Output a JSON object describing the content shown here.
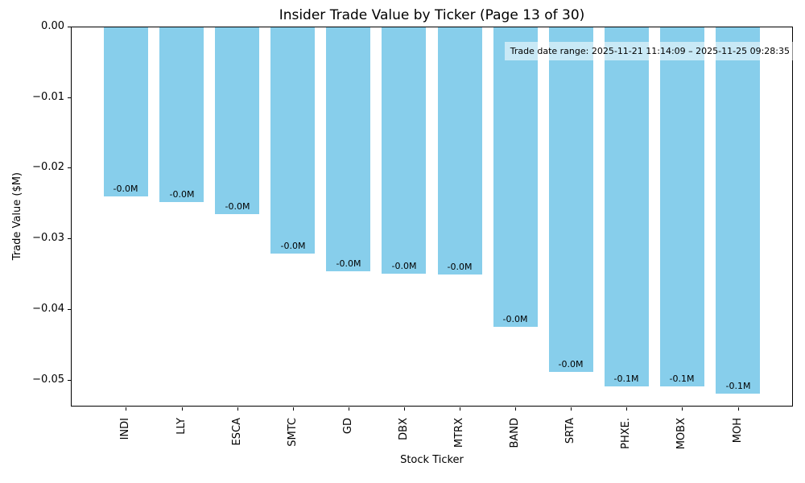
{
  "page": {
    "background": "#ffffff"
  },
  "chart": {
    "title": "Insider Trade Value by Ticker (Page 13 of 30)",
    "xlabel": "Stock Ticker",
    "ylabel": "Trade Value ($M)",
    "annotation": "Trade date range: 2025-11-21 11:14:09 – 2025-11-25 09:28:35"
  },
  "chart_data": {
    "type": "bar",
    "title": "Insider Trade Value by Ticker (Page 13 of 30)",
    "xlabel": "Stock Ticker",
    "ylabel": "Trade Value ($M)",
    "categories": [
      "INDI",
      "LLY",
      "ESCA",
      "SMTC",
      "GD",
      "DBX",
      "MTRX",
      "BAND",
      "SRTA",
      "PHXE.",
      "MOBX",
      "MOH"
    ],
    "values": [
      -0.0241,
      -0.0248,
      -0.0266,
      -0.0321,
      -0.0346,
      -0.035,
      -0.0351,
      -0.0425,
      -0.0489,
      -0.0509,
      -0.051,
      -0.052
    ],
    "bar_labels": [
      "-0.0M",
      "-0.0M",
      "-0.0M",
      "-0.0M",
      "-0.0M",
      "-0.0M",
      "-0.0M",
      "-0.0M",
      "-0.0M",
      "-0.1M",
      "-0.1M",
      "-0.1M"
    ],
    "bar_color": "#87CEEB",
    "ylim": [
      -0.0538,
      0
    ],
    "yticks": [
      {
        "value": 0,
        "label": "0.00"
      },
      {
        "value": -0.01,
        "label": "−0.01"
      },
      {
        "value": -0.02,
        "label": "−0.02"
      },
      {
        "value": -0.03,
        "label": "−0.03"
      },
      {
        "value": -0.04,
        "label": "−0.04"
      },
      {
        "value": -0.05,
        "label": "−0.05"
      }
    ],
    "grid": false,
    "legend": null,
    "annotation": {
      "text": "Trade date range: 2025-11-21 11:14:09 – 2025-11-25 09:28:35",
      "position": "top-right"
    }
  }
}
